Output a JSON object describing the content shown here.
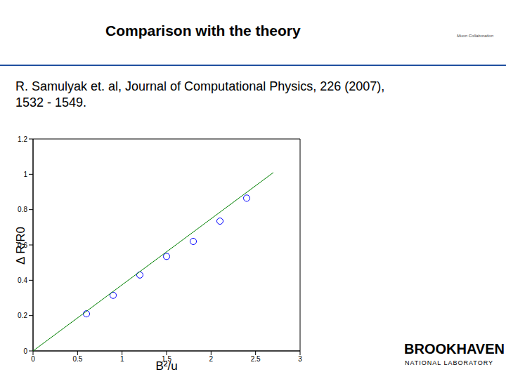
{
  "title": "Comparison with the theory",
  "reference": [
    "R. Samulyak et. al, Journal of Computational Physics, 226 (2007),",
    "1532 - 1549."
  ],
  "logos": {
    "top": "Muon Collaboration",
    "bottom": [
      "BROOKHAVEN",
      "NATIONAL LABORATORY"
    ]
  },
  "chart_data": {
    "type": "scatter",
    "x_label": "B²/u",
    "y_label": "Δ R/R0",
    "xlim": [
      0,
      3
    ],
    "ylim": [
      0,
      1.2
    ],
    "xticks": [
      0,
      0.5,
      1,
      1.5,
      2,
      2.5,
      3
    ],
    "yticks": [
      0,
      0.2,
      0.4,
      0.6,
      0.8,
      1,
      1.2
    ],
    "series": [
      {
        "type": "scatter",
        "color": "#0000ff",
        "marker": "circle",
        "x": [
          0.6,
          0.9,
          1.2,
          1.5,
          1.8,
          2.1,
          2.4
        ],
        "values": [
          0.21,
          0.315,
          0.43,
          0.535,
          0.62,
          0.735,
          0.865
        ]
      },
      {
        "type": "line",
        "color": "#008000",
        "line_style": "solid",
        "x": [
          0,
          2.7
        ],
        "values": [
          0,
          1.01
        ]
      }
    ]
  }
}
